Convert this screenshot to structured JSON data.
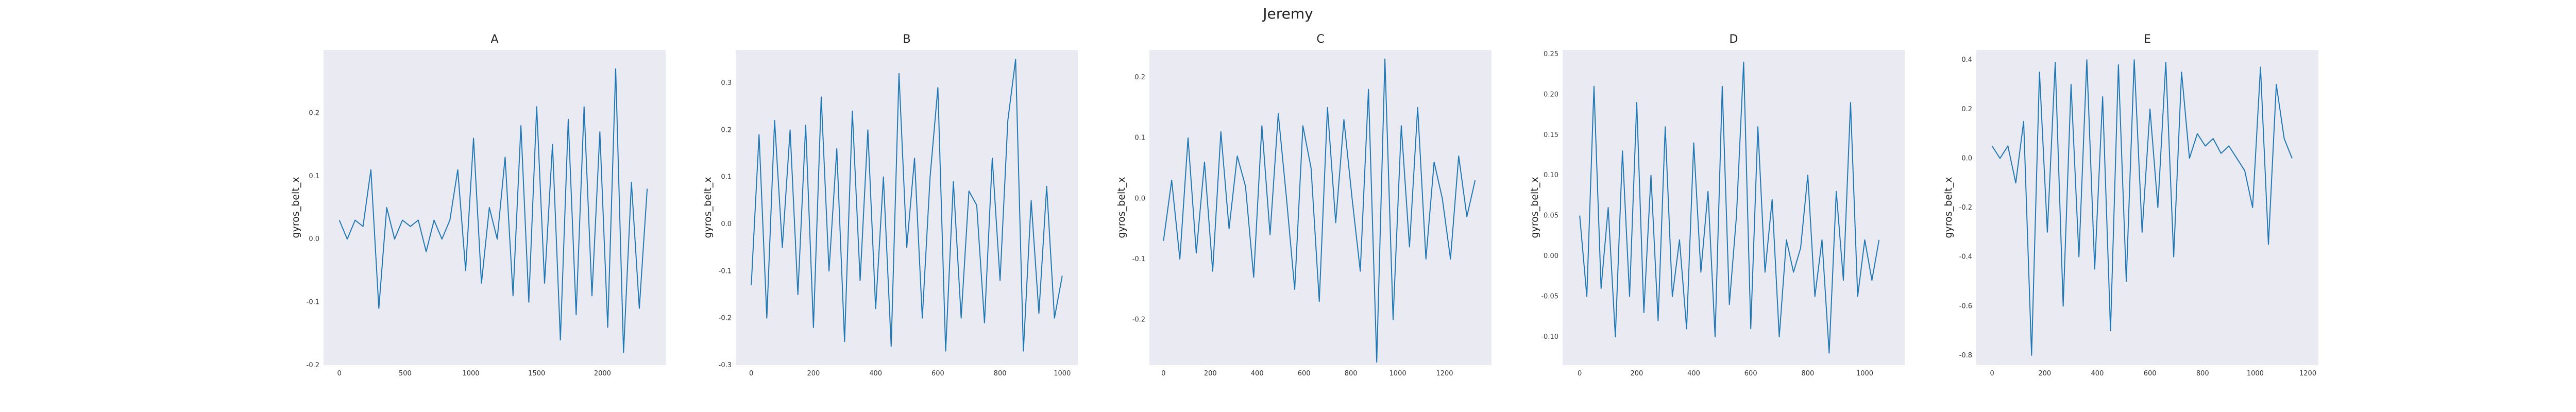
{
  "figure": {
    "title": "Jeremy"
  },
  "colors": {
    "line": "#1f77b4",
    "panel_bg": "#eaeaf2"
  },
  "chart_data": [
    {
      "type": "line",
      "title": "A",
      "ylabel": "gyros_belt_x",
      "xlabel": "",
      "grid": false,
      "xlim": [
        -120,
        2480
      ],
      "ylim": [
        -0.2,
        0.3
      ],
      "xticks": [
        0,
        500,
        1000,
        1500,
        2000
      ],
      "yticks": [
        -0.2,
        -0.1,
        0.0,
        0.1,
        0.2
      ],
      "ytick_labels": [
        "-0.2",
        "-0.1",
        "0.0",
        "0.1",
        "0.2"
      ],
      "series": [
        {
          "x": [
            0,
            60,
            120,
            180,
            240,
            300,
            360,
            420,
            480,
            540,
            600,
            660,
            720,
            780,
            840,
            900,
            960,
            1020,
            1080,
            1140,
            1200,
            1260,
            1320,
            1380,
            1440,
            1500,
            1560,
            1620,
            1680,
            1740,
            1800,
            1860,
            1920,
            1980,
            2040,
            2100,
            2160,
            2220,
            2280,
            2340
          ],
          "y": [
            0.03,
            0.0,
            0.03,
            0.02,
            0.11,
            -0.11,
            0.05,
            0.0,
            0.03,
            0.02,
            0.03,
            -0.02,
            0.03,
            0.0,
            0.03,
            0.11,
            -0.05,
            0.16,
            -0.07,
            0.05,
            0.0,
            0.13,
            -0.09,
            0.18,
            -0.1,
            0.21,
            -0.07,
            0.15,
            -0.16,
            0.19,
            -0.12,
            0.21,
            -0.09,
            0.17,
            -0.14,
            0.27,
            -0.18,
            0.09,
            -0.11,
            0.08
          ]
        }
      ]
    },
    {
      "type": "line",
      "title": "B",
      "ylabel": "gyros_belt_x",
      "xlabel": "",
      "grid": false,
      "xlim": [
        -50,
        1050
      ],
      "ylim": [
        -0.3,
        0.37
      ],
      "xticks": [
        0,
        200,
        400,
        600,
        800,
        1000
      ],
      "yticks": [
        -0.3,
        -0.2,
        -0.1,
        0.0,
        0.1,
        0.2,
        0.3
      ],
      "ytick_labels": [
        "-0.3",
        "-0.2",
        "-0.1",
        "0.0",
        "0.1",
        "0.2",
        "0.3"
      ],
      "series": [
        {
          "x": [
            0,
            25,
            50,
            75,
            100,
            125,
            150,
            175,
            200,
            225,
            250,
            275,
            300,
            325,
            350,
            375,
            400,
            425,
            450,
            475,
            500,
            525,
            550,
            575,
            600,
            625,
            650,
            675,
            700,
            725,
            750,
            775,
            800,
            825,
            850,
            875,
            900,
            925,
            950,
            975,
            1000
          ],
          "y": [
            -0.13,
            0.19,
            -0.2,
            0.22,
            -0.05,
            0.2,
            -0.15,
            0.21,
            -0.22,
            0.27,
            -0.1,
            0.16,
            -0.25,
            0.24,
            -0.12,
            0.2,
            -0.18,
            0.1,
            -0.26,
            0.32,
            -0.05,
            0.14,
            -0.2,
            0.1,
            0.29,
            -0.27,
            0.09,
            -0.2,
            0.07,
            0.04,
            -0.21,
            0.14,
            -0.12,
            0.22,
            0.35,
            -0.27,
            0.05,
            -0.19,
            0.08,
            -0.2,
            -0.11
          ]
        }
      ]
    },
    {
      "type": "line",
      "title": "C",
      "ylabel": "gyros_belt_x",
      "xlabel": "",
      "grid": false,
      "xlim": [
        -60,
        1400
      ],
      "ylim": [
        -0.275,
        0.245
      ],
      "xticks": [
        0,
        200,
        400,
        600,
        800,
        1000,
        1200
      ],
      "yticks": [
        -0.2,
        -0.1,
        0.0,
        0.1,
        0.2
      ],
      "ytick_labels": [
        "-0.2",
        "-0.1",
        "0.0",
        "0.1",
        "0.2"
      ],
      "series": [
        {
          "x": [
            0,
            35,
            70,
            105,
            140,
            175,
            210,
            245,
            280,
            315,
            350,
            385,
            420,
            455,
            490,
            525,
            560,
            595,
            630,
            665,
            700,
            735,
            770,
            805,
            840,
            875,
            910,
            945,
            980,
            1015,
            1050,
            1085,
            1120,
            1155,
            1190,
            1225,
            1260,
            1295,
            1330
          ],
          "y": [
            -0.07,
            0.03,
            -0.1,
            0.1,
            -0.09,
            0.06,
            -0.12,
            0.11,
            -0.05,
            0.07,
            0.02,
            -0.13,
            0.12,
            -0.06,
            0.14,
            0.0,
            -0.15,
            0.12,
            0.05,
            -0.17,
            0.15,
            -0.04,
            0.13,
            0.0,
            -0.12,
            0.18,
            -0.27,
            0.23,
            -0.2,
            0.12,
            -0.08,
            0.15,
            -0.1,
            0.06,
            0.0,
            -0.1,
            0.07,
            -0.03,
            0.03
          ]
        }
      ]
    },
    {
      "type": "line",
      "title": "D",
      "ylabel": "gyros_belt_x",
      "xlabel": "",
      "grid": false,
      "xlim": [
        -60,
        1140
      ],
      "ylim": [
        -0.135,
        0.255
      ],
      "xticks": [
        0,
        200,
        400,
        600,
        800,
        1000
      ],
      "yticks": [
        -0.1,
        -0.05,
        0.0,
        0.05,
        0.1,
        0.15,
        0.2,
        0.25
      ],
      "ytick_labels": [
        "-0.10",
        "-0.05",
        "0.00",
        "0.05",
        "0.10",
        "0.15",
        "0.20",
        "0.25"
      ],
      "series": [
        {
          "x": [
            0,
            25,
            50,
            75,
            100,
            125,
            150,
            175,
            200,
            225,
            250,
            275,
            300,
            325,
            350,
            375,
            400,
            425,
            450,
            475,
            500,
            525,
            550,
            575,
            600,
            625,
            650,
            675,
            700,
            725,
            750,
            775,
            800,
            825,
            850,
            875,
            900,
            925,
            950,
            975,
            1000,
            1025,
            1050
          ],
          "y": [
            0.05,
            -0.05,
            0.21,
            -0.04,
            0.06,
            -0.1,
            0.13,
            -0.05,
            0.19,
            -0.07,
            0.1,
            -0.08,
            0.16,
            -0.05,
            0.02,
            -0.09,
            0.14,
            -0.02,
            0.08,
            -0.1,
            0.21,
            -0.06,
            0.05,
            0.24,
            -0.09,
            0.16,
            -0.02,
            0.07,
            -0.1,
            0.02,
            -0.02,
            0.01,
            0.1,
            -0.05,
            0.02,
            -0.12,
            0.08,
            -0.03,
            0.19,
            -0.05,
            0.02,
            -0.03,
            0.02
          ]
        }
      ]
    },
    {
      "type": "line",
      "title": "E",
      "ylabel": "gyros_belt_x",
      "xlabel": "",
      "grid": false,
      "xlim": [
        -60,
        1240
      ],
      "ylim": [
        -0.84,
        0.44
      ],
      "xticks": [
        0,
        200,
        400,
        600,
        800,
        1000,
        1200
      ],
      "yticks": [
        -0.8,
        -0.6,
        -0.4,
        -0.2,
        0.0,
        0.2,
        0.4
      ],
      "ytick_labels": [
        "-0.8",
        "-0.6",
        "-0.4",
        "-0.2",
        "0.0",
        "0.2",
        "0.4"
      ],
      "series": [
        {
          "x": [
            0,
            30,
            60,
            90,
            120,
            150,
            180,
            210,
            240,
            270,
            300,
            330,
            360,
            390,
            420,
            450,
            480,
            510,
            540,
            570,
            600,
            630,
            660,
            690,
            720,
            750,
            780,
            810,
            840,
            870,
            900,
            930,
            960,
            990,
            1020,
            1050,
            1080,
            1110,
            1140
          ],
          "y": [
            0.05,
            0.0,
            0.05,
            -0.1,
            0.15,
            -0.8,
            0.35,
            -0.3,
            0.39,
            -0.6,
            0.3,
            -0.4,
            0.4,
            -0.45,
            0.25,
            -0.7,
            0.38,
            -0.5,
            0.4,
            -0.3,
            0.2,
            -0.2,
            0.39,
            -0.4,
            0.35,
            0.0,
            0.1,
            0.05,
            0.08,
            0.02,
            0.05,
            0.0,
            -0.05,
            -0.2,
            0.37,
            -0.35,
            0.3,
            0.08,
            0.0
          ]
        }
      ]
    }
  ]
}
